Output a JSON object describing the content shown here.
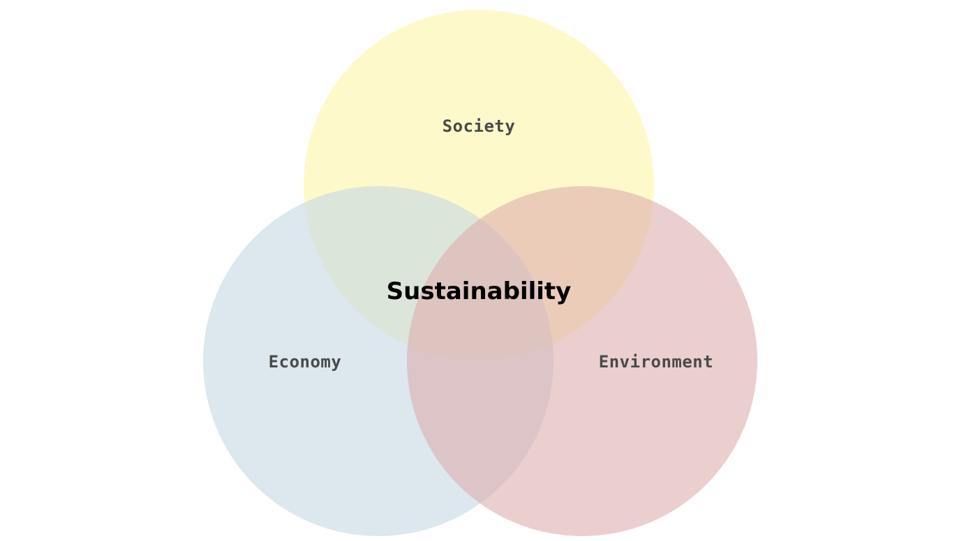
{
  "diagram": {
    "type": "venn",
    "sets": [
      {
        "id": "society",
        "label": "Society",
        "color": "#fdf5a6"
      },
      {
        "id": "economy",
        "label": "Economy",
        "color": "#c5d7e2"
      },
      {
        "id": "environment",
        "label": "Environment",
        "color": "#deaeae"
      }
    ],
    "intersection_label": "Sustainability",
    "circle_opacity": 0.6
  }
}
